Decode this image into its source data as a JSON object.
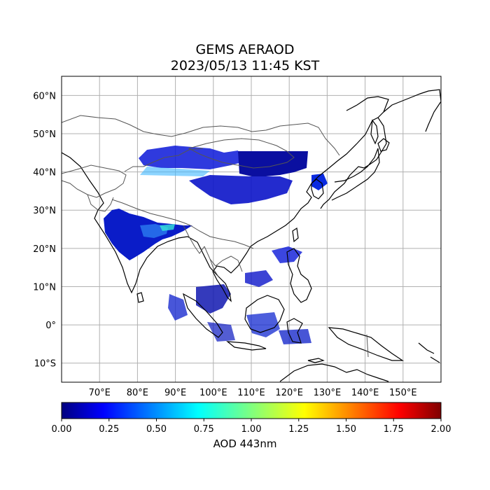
{
  "title": {
    "line1": "GEMS AERAOD",
    "line2": "2023/05/13 11:45 KST"
  },
  "map": {
    "lon_range": [
      60,
      160
    ],
    "lat_range": [
      -15,
      65
    ],
    "lat_ticks": [
      {
        "value": 60,
        "label": "60°N"
      },
      {
        "value": 50,
        "label": "50°N"
      },
      {
        "value": 40,
        "label": "40°N"
      },
      {
        "value": 30,
        "label": "30°N"
      },
      {
        "value": 20,
        "label": "20°N"
      },
      {
        "value": 10,
        "label": "10°N"
      },
      {
        "value": 0,
        "label": "0°"
      },
      {
        "value": -10,
        "label": "10°S"
      }
    ],
    "lon_ticks": [
      {
        "value": 70,
        "label": "70°E"
      },
      {
        "value": 80,
        "label": "80°E"
      },
      {
        "value": 90,
        "label": "90°E"
      },
      {
        "value": 100,
        "label": "100°E"
      },
      {
        "value": 110,
        "label": "110°E"
      },
      {
        "value": 120,
        "label": "120°E"
      },
      {
        "value": 130,
        "label": "130°E"
      },
      {
        "value": 140,
        "label": "140°E"
      },
      {
        "value": 150,
        "label": "150°E"
      }
    ],
    "grid": true
  },
  "colorbar": {
    "label": "AOD 443nm",
    "min": 0.0,
    "max": 2.0,
    "ticks": [
      "0.00",
      "0.25",
      "0.50",
      "0.75",
      "1.00",
      "1.25",
      "1.50",
      "1.75",
      "2.00"
    ],
    "colormap": "jet",
    "colors": [
      "#00007f",
      "#0000ff",
      "#007fff",
      "#00ffff",
      "#7fff7f",
      "#ffff00",
      "#ff7f00",
      "#ff0000",
      "#7f0000"
    ]
  }
}
